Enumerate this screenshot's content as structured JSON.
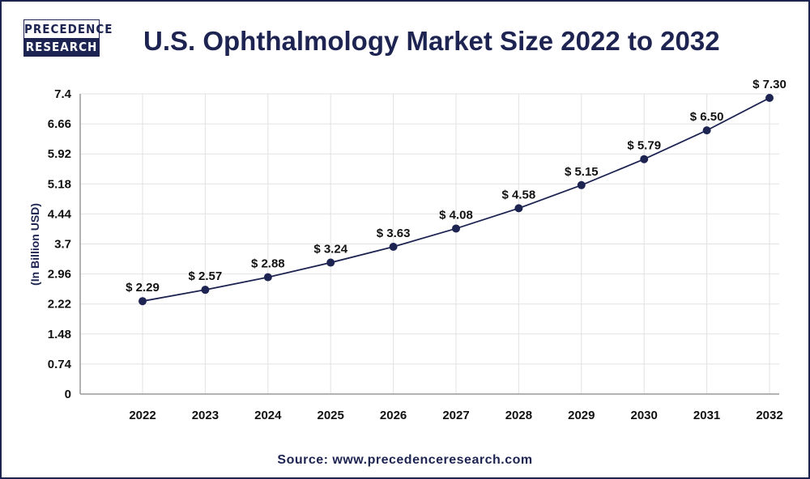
{
  "logo": {
    "line1": "PRECEDENCE",
    "line2": "RESEARCH"
  },
  "source": "Source: www.precedenceresearch.com",
  "chart_data": {
    "type": "line",
    "title": "U.S. Ophthalmology Market Size 2022 to 2032",
    "xlabel": "",
    "ylabel": "(In Billion USD)",
    "categories": [
      "2022",
      "2023",
      "2024",
      "2025",
      "2026",
      "2027",
      "2028",
      "2029",
      "2030",
      "2031",
      "2032"
    ],
    "values": [
      2.29,
      2.57,
      2.88,
      3.24,
      3.63,
      4.08,
      4.58,
      5.15,
      5.79,
      6.5,
      7.3
    ],
    "data_labels": [
      "$ 2.29",
      "$ 2.57",
      "$ 2.88",
      "$ 3.24",
      "$ 3.63",
      "$ 4.08",
      "$ 4.58",
      "$ 5.15",
      "$ 5.79",
      "$ 6.50",
      "$ 7.30"
    ],
    "yticks": [
      "0",
      "0.74",
      "1.48",
      "2.22",
      "2.96",
      "3.7",
      "4.44",
      "5.18",
      "5.92",
      "6.66",
      "7.4"
    ],
    "ylim": [
      0,
      7.4
    ],
    "grid": true,
    "color": "#1e2452"
  }
}
